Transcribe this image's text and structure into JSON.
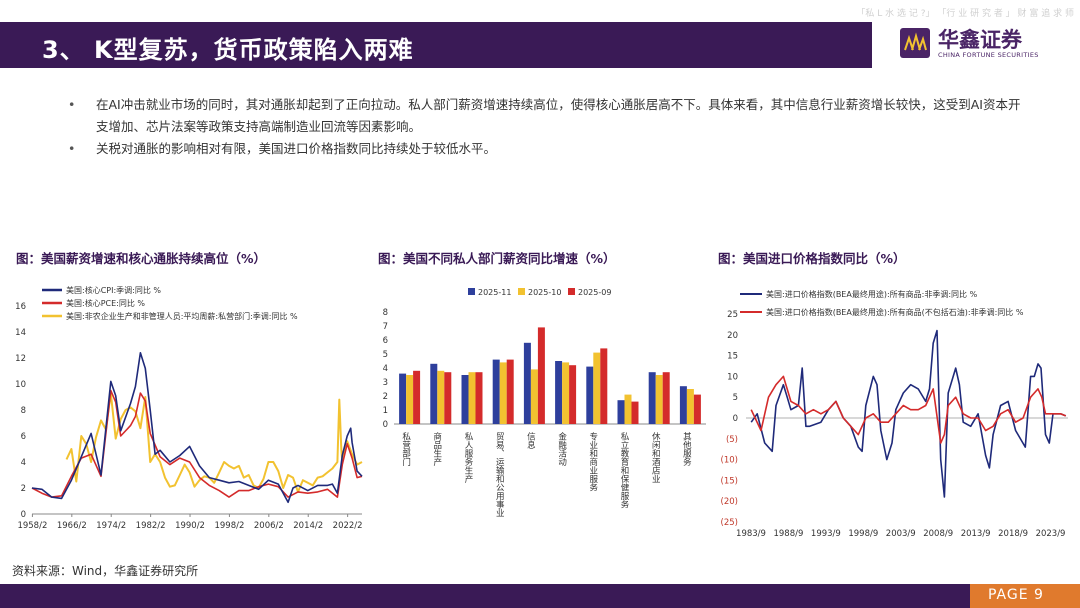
{
  "watermark": "「私 L 水 选 记 ?」 「行 业 研 究 者 」 财 富 追 求 师",
  "header": {
    "title": "3、 K型复苏，货币政策陷入两难",
    "logo_cn": "华鑫证券",
    "logo_en": "CHINA FORTUNE SECURITIES"
  },
  "bullets": [
    "在AI冲击就业市场的同时，其对通胀却起到了正向拉动。私人部门薪资增速持续高位，使得核心通胀居高不下。具体来看，其中信息行业薪资增长较快，这受到AI资本开支增加、芯片法案等政策支持高端制造业回流等因素影响。",
    "关税对通胀的影响相对有限，美国进口价格指数同比持续处于较低水平。"
  ],
  "source": "资料来源：Wind，华鑫证券研究所",
  "footer": {
    "page": "PAGE 9"
  },
  "chart_data": [
    {
      "type": "line",
      "title": "图：美国薪资增速和核心通胀持续高位（%）",
      "x_ticks": [
        "1958/2",
        "1966/2",
        "1974/2",
        "1982/2",
        "1990/2",
        "1998/2",
        "2006/2",
        "2014/2",
        "2022/2"
      ],
      "xlim": [
        1958,
        2025
      ],
      "ylim": [
        0,
        16
      ],
      "y_ticks": [
        0,
        2,
        4,
        6,
        8,
        10,
        12,
        14,
        16
      ],
      "series": [
        {
          "name": "美国:核心CPI:季调:同比 %",
          "color": "#1f2a7a",
          "x": [
            1958,
            1960,
            1962,
            1964,
            1966,
            1968,
            1970,
            1972,
            1974,
            1975,
            1976,
            1978,
            1979,
            1980,
            1981,
            1982,
            1983,
            1984,
            1986,
            1988,
            1990,
            1992,
            1994,
            1996,
            1998,
            2000,
            2002,
            2004,
            2006,
            2008,
            2010,
            2011,
            2012,
            2014,
            2016,
            2018,
            2019,
            2020,
            2021,
            2022,
            2022.7,
            2023,
            2024,
            2025
          ],
          "y": [
            2.0,
            1.9,
            1.3,
            1.2,
            2.6,
            4.4,
            6.2,
            3.0,
            10.2,
            9.1,
            6.4,
            8.5,
            9.8,
            12.4,
            11.2,
            8.0,
            4.6,
            4.9,
            4.0,
            4.5,
            5.2,
            3.7,
            2.8,
            2.6,
            2.4,
            2.5,
            2.2,
            1.9,
            2.6,
            2.3,
            0.9,
            2.0,
            2.2,
            1.8,
            2.2,
            2.2,
            2.3,
            1.6,
            4.5,
            6.0,
            6.6,
            5.5,
            3.3,
            2.9
          ]
        },
        {
          "name": "美国:核心PCE:同比 %",
          "color": "#d42b2b",
          "x": [
            1958,
            1960,
            1962,
            1964,
            1966,
            1968,
            1970,
            1972,
            1974,
            1975,
            1976,
            1978,
            1979,
            1980,
            1981,
            1982,
            1984,
            1986,
            1988,
            1990,
            1992,
            1994,
            1996,
            1998,
            2000,
            2002,
            2004,
            2006,
            2008,
            2010,
            2012,
            2014,
            2016,
            2018,
            2020,
            2021,
            2022,
            2023,
            2024,
            2025
          ],
          "y": [
            2.0,
            1.6,
            1.3,
            1.4,
            2.9,
            4.3,
            4.6,
            2.9,
            9.5,
            8.6,
            6.0,
            6.8,
            7.5,
            9.3,
            8.7,
            6.2,
            4.4,
            3.8,
            4.3,
            4.0,
            2.8,
            2.2,
            1.8,
            1.3,
            1.8,
            1.8,
            2.1,
            2.3,
            2.1,
            1.3,
            1.7,
            1.6,
            1.7,
            1.9,
            1.3,
            3.8,
            5.4,
            4.3,
            2.8,
            2.9
          ]
        },
        {
          "name": "美国:非农企业生产和非管理人员:平均周薪:私营部门:季调:同比 %",
          "color": "#f2c230",
          "x": [
            1965,
            1966,
            1967,
            1968,
            1969,
            1970,
            1971,
            1972,
            1973,
            1974,
            1975,
            1976,
            1977,
            1978,
            1979,
            1980,
            1981,
            1982,
            1983,
            1984,
            1985,
            1986,
            1987,
            1988,
            1989,
            1990,
            1991,
            1992,
            1993,
            1994,
            1995,
            1996,
            1997,
            1998,
            1999,
            2000,
            2001,
            2002,
            2003,
            2004,
            2005,
            2006,
            2007,
            2008,
            2009,
            2010,
            2011,
            2012,
            2013,
            2014,
            2015,
            2016,
            2017,
            2018,
            2019,
            2020,
            2020.4,
            2020.8,
            2021,
            2022,
            2023,
            2024,
            2025
          ],
          "y": [
            4.2,
            5.0,
            2.5,
            6.0,
            5.4,
            4.0,
            5.9,
            7.2,
            6.5,
            9.3,
            5.8,
            7.3,
            8.0,
            8.2,
            7.9,
            6.6,
            9.0,
            4.0,
            4.6,
            4.0,
            2.8,
            2.1,
            2.2,
            3.0,
            3.8,
            3.2,
            2.1,
            2.6,
            2.9,
            2.8,
            2.4,
            3.2,
            4.0,
            3.7,
            3.5,
            3.7,
            2.8,
            3.0,
            2.2,
            2.0,
            2.7,
            4.0,
            4.0,
            3.3,
            2.0,
            3.0,
            2.8,
            1.7,
            2.6,
            2.4,
            2.2,
            2.8,
            2.9,
            3.2,
            3.5,
            4.0,
            8.8,
            5.0,
            4.0,
            5.6,
            4.6,
            3.8,
            4.0
          ]
        }
      ]
    },
    {
      "type": "bar",
      "title": "图：美国不同私人部门薪资同比增速（%）",
      "categories": [
        "私营部门",
        "商品生产",
        "私人服务生产",
        "贸易、运输和公用事业",
        "信息",
        "金融活动",
        "专业和商业服务",
        "私立教育和保健服务",
        "休闲和酒店业",
        "其他服务"
      ],
      "ylim": [
        0,
        8
      ],
      "y_ticks": [
        0,
        1,
        2,
        3,
        4,
        5,
        6,
        7,
        8
      ],
      "series": [
        {
          "name": "2025-11",
          "color": "#2e3f9c",
          "values": [
            3.6,
            4.3,
            3.5,
            4.6,
            5.8,
            4.5,
            4.1,
            1.7,
            3.7,
            2.7
          ]
        },
        {
          "name": "2025-10",
          "color": "#f2c230",
          "values": [
            3.5,
            3.8,
            3.7,
            4.4,
            3.9,
            4.4,
            5.1,
            2.1,
            3.5,
            2.5
          ]
        },
        {
          "name": "2025-09",
          "color": "#d42b2b",
          "values": [
            3.8,
            3.7,
            3.7,
            4.6,
            6.9,
            4.2,
            5.4,
            1.6,
            3.7,
            2.1
          ]
        }
      ]
    },
    {
      "type": "line",
      "title": "图：美国进口价格指数同比（%）",
      "x_ticks": [
        "1983/9",
        "1988/9",
        "1993/9",
        "1998/9",
        "2003/9",
        "2008/9",
        "2013/9",
        "2018/9",
        "2023/9"
      ],
      "xlim": [
        1983,
        2026
      ],
      "ylim": [
        -25,
        25
      ],
      "y_ticks": [
        25,
        20,
        15,
        10,
        5,
        0,
        -5,
        -10,
        -15,
        -20,
        -25
      ],
      "y_tick_labels": [
        "25",
        "20",
        "15",
        "10",
        "5",
        "0",
        "(5)",
        "(10)",
        "(15)",
        "(20)",
        "(25)"
      ],
      "series": [
        {
          "name": "美国:进口价格指数(BEA最终用途):所有商品:非季调:同比 %",
          "color": "#1f2a7a",
          "x": [
            1983.7,
            1984.5,
            1985.5,
            1986.5,
            1987,
            1988,
            1988.5,
            1989,
            1990,
            1990.5,
            1991,
            1991.5,
            1993,
            1994,
            1995,
            1996,
            1997,
            1998,
            1998.5,
            1999,
            2000,
            2000.5,
            2001,
            2001.8,
            2002.5,
            2003,
            2004,
            2005,
            2006,
            2007,
            2007.5,
            2008,
            2008.5,
            2009,
            2009.5,
            2010,
            2011,
            2011.5,
            2012,
            2013,
            2014,
            2015,
            2015.5,
            2016,
            2017,
            2018,
            2019,
            2020.3,
            2021,
            2021.5,
            2022,
            2022.4,
            2023,
            2023.5,
            2024,
            2025,
            2025.7
          ],
          "y": [
            -1,
            1,
            -6,
            -8,
            3,
            8,
            5,
            2,
            3,
            12,
            -2,
            -2,
            -1,
            2,
            4,
            0,
            -2,
            -7,
            -8,
            3,
            10,
            8,
            -3,
            -10,
            -6,
            2,
            6,
            8,
            7,
            4,
            7,
            18,
            21,
            -10,
            -19,
            6,
            12,
            8,
            -1,
            -2,
            1,
            -9,
            -12,
            -4,
            3,
            4,
            -3,
            -7,
            10,
            10,
            13,
            12,
            -4,
            -6,
            1,
            1,
            0.5
          ]
        },
        {
          "name": "美国:进口价格指数(BEA最终用途):所有商品(不包括石油):非季调:同比 %",
          "color": "#d42b2b",
          "x": [
            1983.7,
            1985,
            1986,
            1987,
            1988,
            1989,
            1990,
            1991,
            1992,
            1993,
            1994,
            1995,
            1996,
            1997,
            1998,
            1999,
            2000,
            2001,
            2002,
            2003,
            2004,
            2005,
            2006,
            2007,
            2008,
            2009,
            2009.5,
            2010,
            2011,
            2012,
            2013,
            2014,
            2015,
            2016,
            2017,
            2018,
            2019,
            2020,
            2021,
            2022,
            2022.5,
            2023,
            2024,
            2025,
            2025.7
          ],
          "y": [
            2,
            -3,
            5,
            8,
            10,
            4,
            3,
            1,
            2,
            1,
            2,
            4,
            0,
            -2,
            -4,
            0,
            1,
            -1,
            -1,
            1,
            3,
            2,
            2,
            3,
            7,
            -6,
            -4,
            3,
            5,
            1,
            0,
            0,
            -3,
            -2,
            1,
            2,
            -1,
            0,
            5,
            7,
            5,
            1,
            1,
            1,
            0.5
          ]
        }
      ]
    }
  ]
}
